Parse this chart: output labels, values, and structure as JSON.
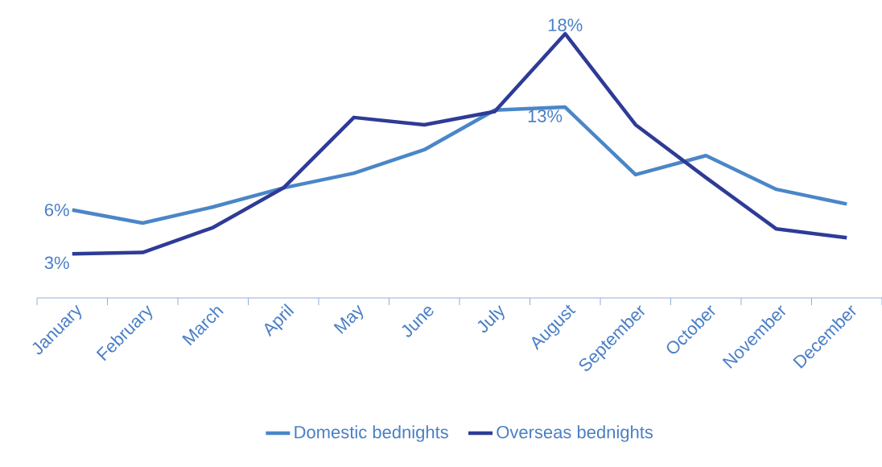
{
  "chart_data": {
    "type": "line",
    "categories": [
      "January",
      "February",
      "March",
      "April",
      "May",
      "June",
      "July",
      "August",
      "September",
      "October",
      "November",
      "December"
    ],
    "tick_labels": "x",
    "legend": "bottom",
    "marker": "none",
    "line_style": "solid",
    "grid": false,
    "series": [
      {
        "name": "Domestic bednights",
        "color": "#4a86c8",
        "values": [
          6,
          5.1,
          6.2,
          7.5,
          8.5,
          10.1,
          12.8,
          13,
          8.4,
          9.7,
          7.4,
          6.4
        ],
        "value_labels": [
          "6%",
          null,
          null,
          null,
          null,
          null,
          null,
          "13%",
          null,
          null,
          null,
          null
        ]
      },
      {
        "name": "Overseas bednights",
        "color": "#2e3b96",
        "values": [
          3,
          3.1,
          4.8,
          7.5,
          12.3,
          11.8,
          12.7,
          18,
          11.8,
          8.2,
          4.7,
          4.1
        ],
        "value_labels": [
          "3%",
          null,
          null,
          null,
          null,
          null,
          null,
          "18%",
          null,
          null,
          null,
          null
        ]
      }
    ]
  }
}
